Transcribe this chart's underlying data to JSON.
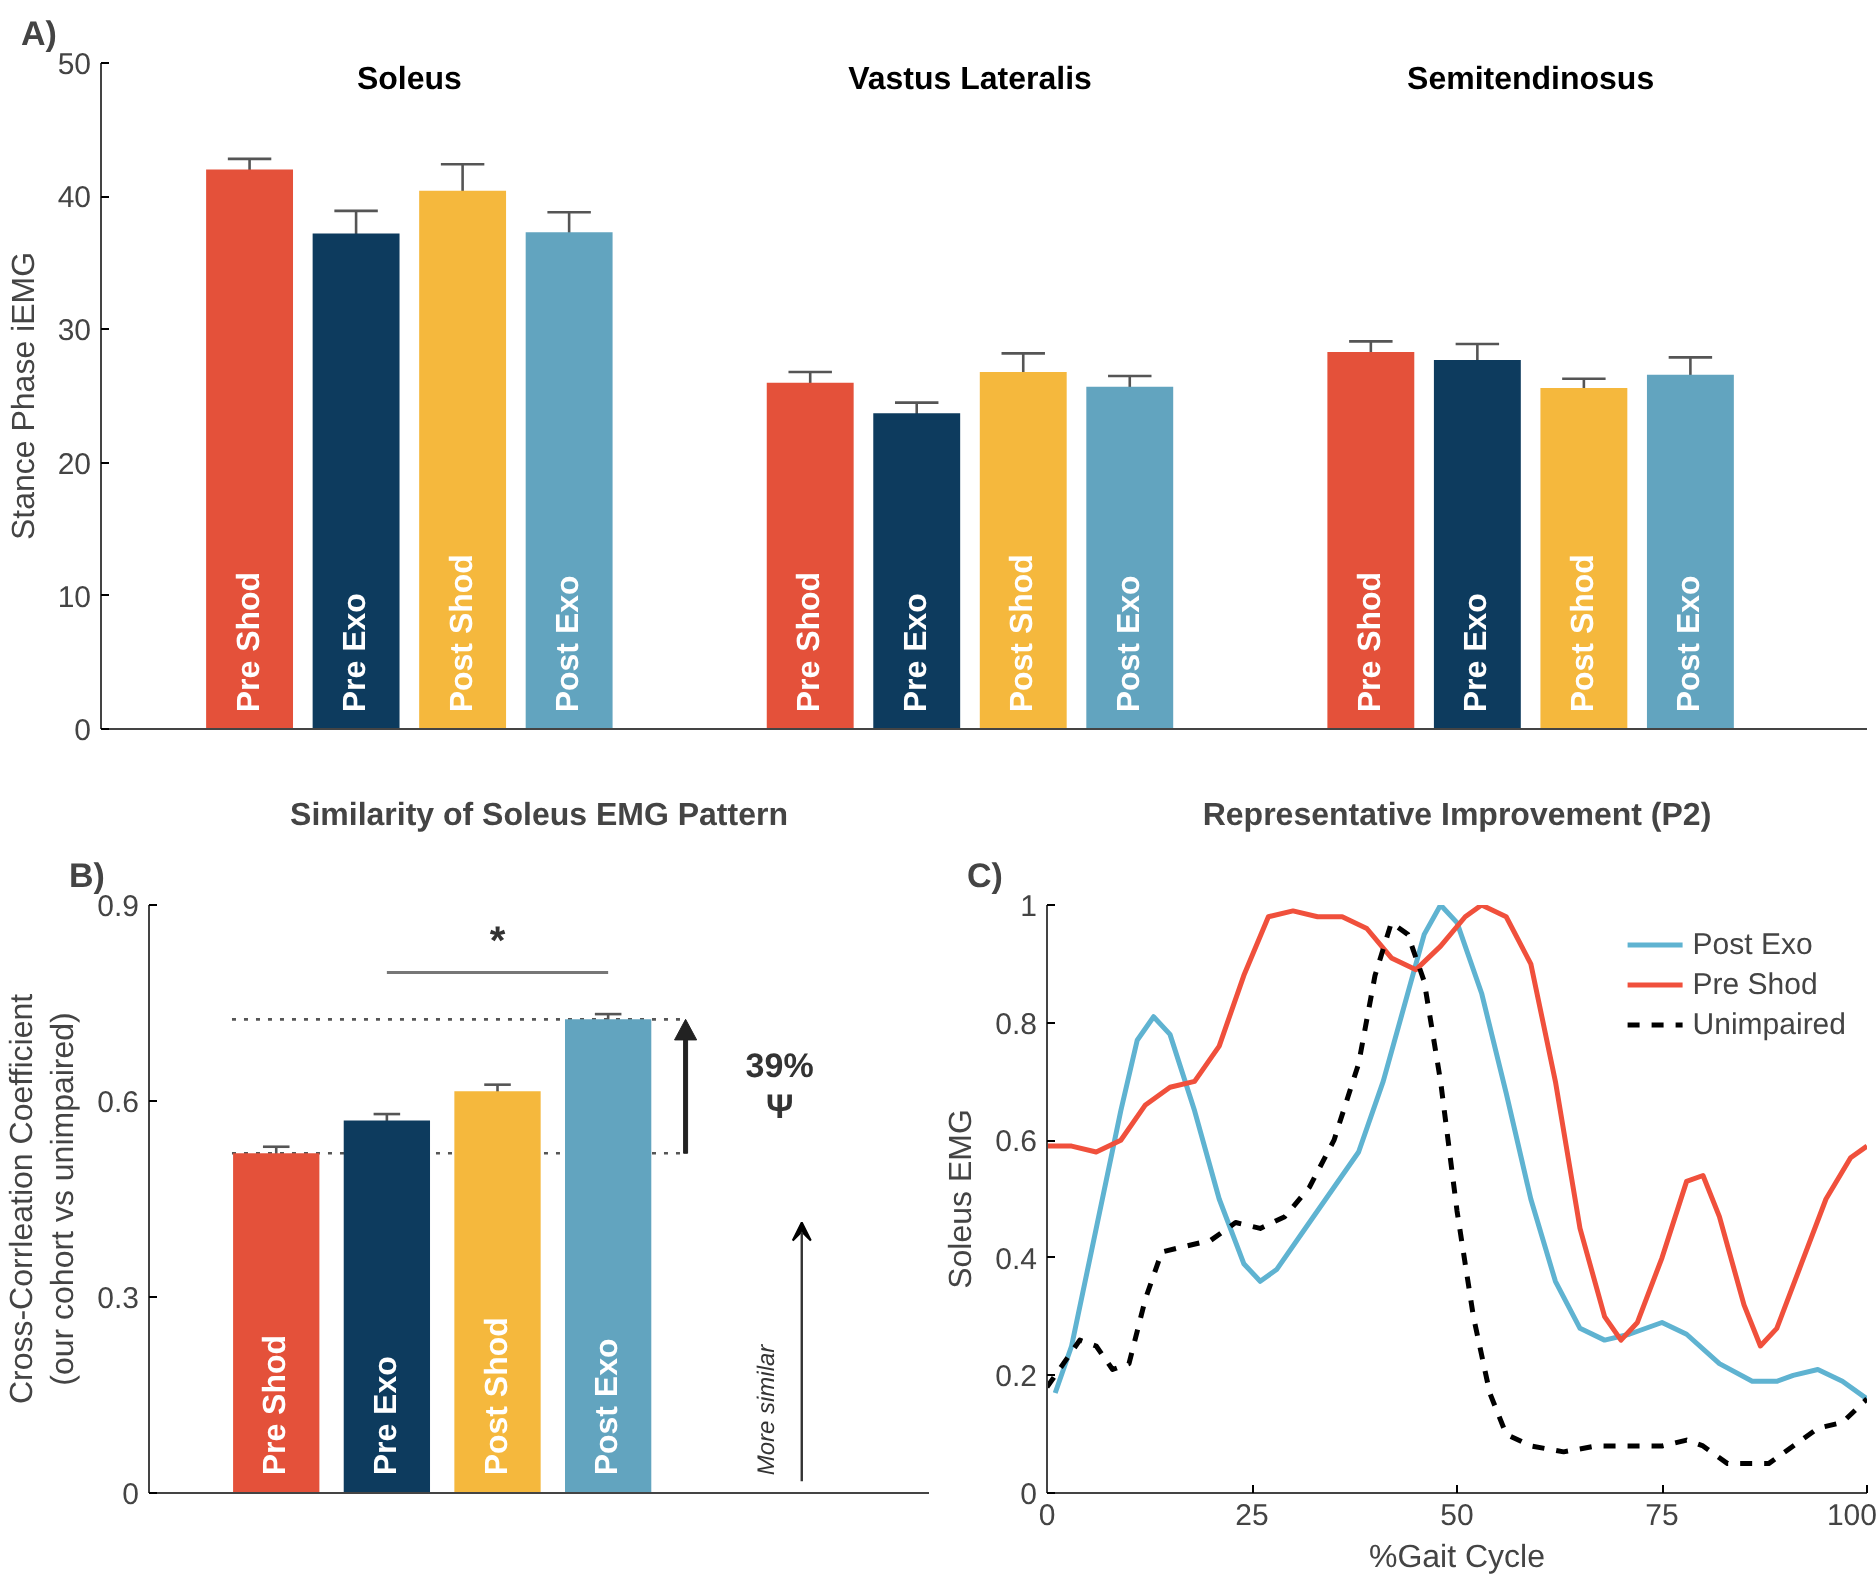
{
  "chart_data": [
    {
      "type": "bar",
      "annotations": [
        "A)"
      ],
      "ylabel": "Stance Phase iEMG",
      "categories": [
        "Soleus",
        "Vastus Lateralis",
        "Semitendinosus"
      ],
      "series": [
        {
          "name": "Pre Shod",
          "color": "#e4513a",
          "values": [
            42.0,
            26.0,
            28.3
          ],
          "errors": [
            0.8,
            0.8,
            0.8
          ]
        },
        {
          "name": "Pre Exo",
          "color": "#0d3b5e",
          "values": [
            37.2,
            23.7,
            27.7
          ],
          "errors": [
            1.7,
            0.8,
            1.2
          ]
        },
        {
          "name": "Post Shod",
          "color": "#f5b83d",
          "values": [
            40.4,
            26.8,
            25.6
          ],
          "errors": [
            2.0,
            1.4,
            0.7
          ]
        },
        {
          "name": "Post Exo",
          "color": "#62a4bf",
          "values": [
            37.3,
            25.7,
            26.6
          ],
          "errors": [
            1.5,
            0.8,
            1.3
          ]
        }
      ],
      "ylim": [
        0,
        50
      ],
      "yticks": [
        0,
        10,
        20,
        30,
        40,
        50
      ],
      "tick_labels": "y"
    },
    {
      "type": "bar",
      "title": "Similarity of Soleus EMG Pattern",
      "annotations": [
        "B)",
        "*",
        "39%",
        "Ψ",
        "More similar"
      ],
      "ylabel": "Cross-Corrleation Coefficient\n(our cohort vs unimpaired)",
      "categories": [
        "Pre Shod",
        "Pre Exo",
        "Post Shod",
        "Post Exo"
      ],
      "values": [
        0.52,
        0.57,
        0.615,
        0.725
      ],
      "errors": [
        0.01,
        0.01,
        0.01,
        0.008
      ],
      "colors": [
        "#e4513a",
        "#0d3b5e",
        "#f5b83d",
        "#62a4bf"
      ],
      "ref_lines": [
        {
          "axis": "y",
          "value": 0.52,
          "label": null,
          "line_style": "dotted",
          "color": "#555555"
        },
        {
          "axis": "y",
          "value": 0.725,
          "label": null,
          "line_style": "dotted",
          "color": "#555555"
        }
      ],
      "ylim": [
        0,
        0.9
      ],
      "yticks": [
        0,
        0.3,
        0.6,
        0.9
      ],
      "tick_labels": "y"
    },
    {
      "type": "line",
      "title": "Representative Improvement (P2)",
      "annotations": [
        "C)"
      ],
      "xlabel": "%Gait Cycle",
      "ylabel": "Soleus EMG",
      "legend": "top right",
      "series": [
        {
          "name": "Post Exo",
          "color": "#5fb3d1",
          "line_style": "solid",
          "x": [
            1,
            3,
            6,
            9,
            11,
            13,
            15,
            18,
            21,
            24,
            26,
            28,
            31,
            35,
            38,
            41,
            44,
            46,
            48,
            50,
            53,
            56,
            59,
            62,
            65,
            68,
            71,
            75,
            78,
            82,
            86,
            89,
            91,
            94,
            97,
            100
          ],
          "values": [
            0.17,
            0.25,
            0.45,
            0.65,
            0.77,
            0.81,
            0.78,
            0.65,
            0.5,
            0.39,
            0.36,
            0.38,
            0.44,
            0.52,
            0.58,
            0.7,
            0.85,
            0.95,
            1.0,
            0.97,
            0.85,
            0.68,
            0.5,
            0.36,
            0.28,
            0.26,
            0.27,
            0.29,
            0.27,
            0.22,
            0.19,
            0.19,
            0.2,
            0.21,
            0.19,
            0.16
          ]
        },
        {
          "name": "Pre Shod",
          "color": "#f0503c",
          "line_style": "solid",
          "x": [
            0,
            3,
            6,
            9,
            12,
            15,
            18,
            21,
            24,
            27,
            30,
            33,
            36,
            39,
            42,
            45,
            48,
            51,
            53,
            56,
            59,
            62,
            65,
            68,
            70,
            72,
            75,
            78,
            80,
            82,
            85,
            87,
            89,
            92,
            95,
            98,
            100
          ],
          "values": [
            0.59,
            0.59,
            0.58,
            0.6,
            0.66,
            0.69,
            0.7,
            0.76,
            0.88,
            0.98,
            0.99,
            0.98,
            0.98,
            0.96,
            0.91,
            0.89,
            0.93,
            0.98,
            1.0,
            0.98,
            0.9,
            0.7,
            0.45,
            0.3,
            0.26,
            0.29,
            0.4,
            0.53,
            0.54,
            0.47,
            0.32,
            0.25,
            0.28,
            0.39,
            0.5,
            0.57,
            0.59
          ]
        },
        {
          "name": "Unimpaired",
          "color": "#000000",
          "line_style": "dashed",
          "x": [
            0,
            2,
            4,
            6,
            8,
            10,
            12,
            14,
            17,
            20,
            23,
            26,
            29,
            32,
            35,
            38,
            40,
            42,
            44,
            46,
            48,
            50,
            52,
            54,
            56,
            59,
            63,
            67,
            71,
            75,
            78,
            80,
            83,
            86,
            88,
            91,
            94,
            97,
            100
          ],
          "values": [
            0.18,
            0.22,
            0.26,
            0.25,
            0.21,
            0.22,
            0.33,
            0.41,
            0.42,
            0.43,
            0.46,
            0.45,
            0.47,
            0.52,
            0.6,
            0.73,
            0.88,
            0.97,
            0.95,
            0.87,
            0.7,
            0.48,
            0.3,
            0.17,
            0.1,
            0.08,
            0.07,
            0.08,
            0.08,
            0.08,
            0.09,
            0.08,
            0.05,
            0.05,
            0.05,
            0.08,
            0.11,
            0.12,
            0.16
          ]
        }
      ],
      "xlim": [
        0,
        100
      ],
      "xticks": [
        0,
        25,
        50,
        75,
        100
      ],
      "ylim": [
        0,
        1
      ],
      "yticks": [
        0,
        0.2,
        0.4,
        0.6,
        0.8,
        1
      ]
    }
  ]
}
